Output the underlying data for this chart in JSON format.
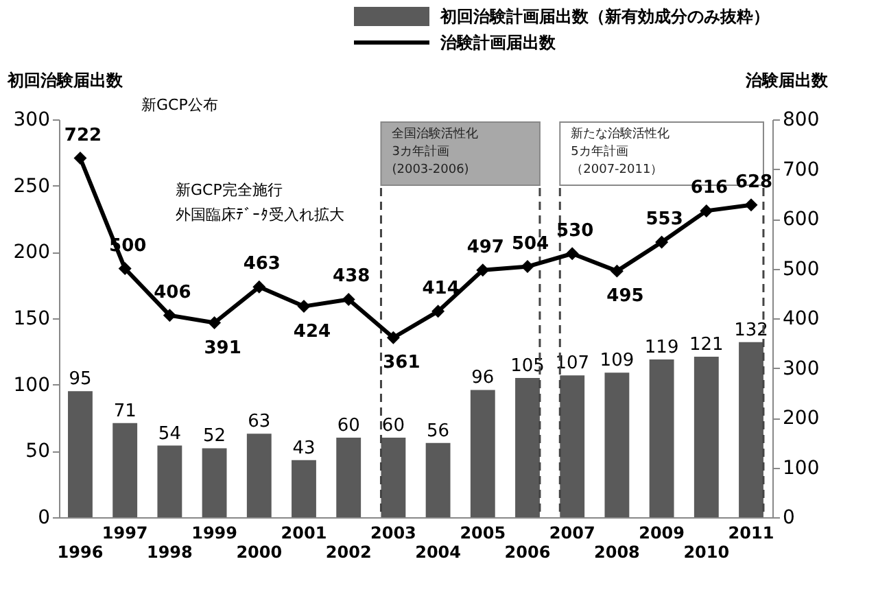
{
  "chart_data": {
    "type": "bar",
    "categories": [
      "1996",
      "1997",
      "1998",
      "1999",
      "2000",
      "2001",
      "2002",
      "2003",
      "2004",
      "2005",
      "2006",
      "2007",
      "2008",
      "2009",
      "2010",
      "2011"
    ],
    "ylabel": "初回治験届出数",
    "y2label": "治験届出数",
    "series": [
      {
        "name": "初回治験計画届出数（新有効成分のみ抜粋）",
        "color": "#5a5a5a",
        "values": [
          95,
          71,
          54,
          52,
          63,
          43,
          60,
          60,
          56,
          96,
          105,
          107,
          109,
          119,
          121,
          132
        ]
      },
      {
        "name": "治験計画届出数",
        "type": "line",
        "axis": "y2",
        "color": "#000000",
        "marker": "diamond",
        "values": [
          722,
          500,
          406,
          391,
          463,
          424,
          438,
          361,
          414,
          497,
          504,
          530,
          495,
          553,
          616,
          628
        ]
      }
    ],
    "ylim": [
      0,
      300
    ],
    "yticks": [
      0,
      50,
      100,
      150,
      200,
      250,
      300
    ],
    "y2lim": [
      0,
      800
    ],
    "y2ticks": [
      0,
      100,
      200,
      300,
      400,
      500,
      600,
      700,
      800
    ],
    "data_labels": true,
    "legend": "top",
    "bands": [
      {
        "axis": "x",
        "from": "2003",
        "to": "2006",
        "label": "全国治験活性化",
        "color": "#a8a8a8"
      },
      {
        "axis": "x",
        "from": "2007",
        "to": "2011",
        "label": "新たな治験活性化",
        "color": "#ffffff"
      }
    ],
    "annotations": [
      "新GCP公布",
      "新GCP完全施行",
      "外国臨床ﾃﾞｰﾀ受入れ拡大",
      "3カ年計画",
      "(2003-2006)",
      "5カ年計画",
      "（2007-2011）"
    ]
  }
}
